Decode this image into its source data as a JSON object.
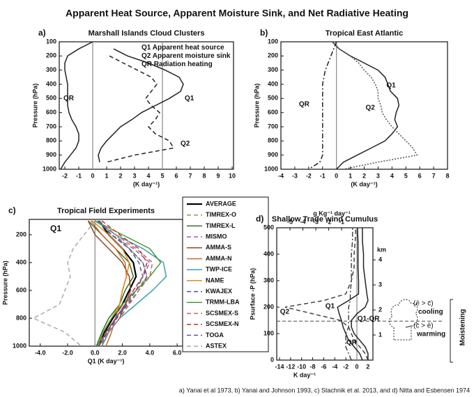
{
  "title": "Apparent Heat Source, Apparent Moisture Sink, and Net Radiative Heating",
  "caption": "a) Yanai et al 1973, b) Yanai and Johnson 1993, c) Stachnik et al. 2013, and d) Nitta and Esbensen 1974",
  "chart_data": [
    {
      "type": "line",
      "panel_label": "a)",
      "title": "Marshall Islands Cloud Clusters",
      "xlabel": "(K day⁻¹)",
      "ylabel": "Pressure (hPa)",
      "y": [
        100,
        150,
        200,
        250,
        300,
        350,
        400,
        450,
        500,
        550,
        600,
        650,
        700,
        750,
        800,
        850,
        900,
        950,
        1000
      ],
      "xlim": [
        -2.4,
        10.1
      ],
      "xticks": [
        -2,
        -1,
        0,
        1,
        2,
        3,
        4,
        5,
        6,
        7,
        8,
        9,
        10
      ],
      "ylim": [
        100,
        1000
      ],
      "yticks": [
        100,
        200,
        300,
        400,
        500,
        600,
        700,
        800,
        900,
        1000
      ],
      "y_inverted": true,
      "reference_lines": [
        0,
        5
      ],
      "legend": "inside-top-right",
      "series": [
        {
          "name": "Q1",
          "description": "Apparent heat source",
          "color": "#222222",
          "dash": "solid",
          "values": [
            null,
            1.5,
            2.5,
            4,
            5.2,
            6.2,
            6.5,
            6.3,
            5.5,
            4.5,
            3.5,
            2.8,
            2,
            1.5,
            1,
            0.6,
            0.4,
            0.5,
            null
          ]
        },
        {
          "name": "Q2",
          "description": "Apparent moisture sink",
          "color": "#222222",
          "dash": "dashed",
          "values": [
            null,
            null,
            1.2,
            2.2,
            3.2,
            4.2,
            4.6,
            4.2,
            3.8,
            4.2,
            4.8,
            4.5,
            4,
            4.5,
            5.5,
            5.8,
            3,
            1,
            null
          ]
        },
        {
          "name": "QR",
          "description": "Radiation heating",
          "color": "#222222",
          "dash": "solid",
          "values": [
            0,
            -1,
            -1.8,
            -2,
            -2,
            -1.9,
            -1.8,
            -1.8,
            -1.8,
            -1.8,
            -1.7,
            -1.5,
            -1.2,
            -1,
            -1,
            -1.2,
            -1.6,
            -2,
            -2.3
          ]
        }
      ]
    },
    {
      "type": "line",
      "panel_label": "b)",
      "title": "Tropical East Atlantic",
      "xlabel": "(K day⁻¹)",
      "ylabel": "Pressure (hPa)",
      "y": [
        100,
        150,
        200,
        250,
        300,
        350,
        400,
        450,
        500,
        550,
        600,
        650,
        700,
        750,
        800,
        850,
        900,
        950,
        1000
      ],
      "xlim": [
        -4,
        8
      ],
      "xticks": [
        -4,
        -3,
        -2,
        -1,
        0,
        1,
        2,
        3,
        4,
        5,
        6,
        7,
        8
      ],
      "ylim": [
        100,
        1000
      ],
      "yticks": [
        100,
        200,
        300,
        400,
        500,
        600,
        700,
        800,
        900,
        1000
      ],
      "y_inverted": true,
      "reference_lines": [
        0
      ],
      "series": [
        {
          "name": "Q1",
          "color": "#222222",
          "dash": "solid",
          "values": [
            -0.3,
            0.2,
            1,
            2,
            3,
            3.5,
            3.7,
            3.9,
            4.4,
            4.5,
            4.3,
            4.2,
            4.4,
            4,
            3.5,
            2.5,
            1.5,
            0.5,
            0
          ]
        },
        {
          "name": "Q2",
          "color": "#555555",
          "dash": "dotted",
          "values": [
            -0.3,
            0.2,
            1,
            1.6,
            2,
            2.5,
            2.8,
            3,
            3,
            3.2,
            3.3,
            3.6,
            4,
            4.5,
            5,
            5.5,
            5.8,
            3,
            0.5
          ]
        },
        {
          "name": "QR",
          "color": "#222222",
          "dash": "dashdot",
          "values": [
            0,
            -0.2,
            -0.4,
            -0.6,
            -0.8,
            -0.9,
            -1,
            -1,
            -1,
            -1,
            -1,
            -1,
            -1,
            -1,
            -1,
            -1,
            -1,
            -1.2,
            -2
          ]
        }
      ]
    },
    {
      "type": "line",
      "panel_label": "c)",
      "title": "Tropical Field Experiments",
      "xlabel": "Q1 (K day⁻¹)",
      "ylabel": "Pressure (hPa)",
      "annotations": [
        "Q1"
      ],
      "y": [
        100,
        200,
        300,
        400,
        500,
        600,
        700,
        800,
        900,
        1000
      ],
      "xlim": [
        -4.8,
        6.4
      ],
      "xticks": [
        {
          "value": -4,
          "label": "-4.0"
        },
        {
          "value": -2,
          "label": "-2.0"
        },
        {
          "value": 0,
          "label": "0.0"
        },
        {
          "value": 2,
          "label": "2.0"
        },
        {
          "value": 4,
          "label": "4.0"
        },
        {
          "value": 6,
          "label": "6.0"
        }
      ],
      "ylim": [
        90,
        1000
      ],
      "yticks": [
        200,
        400,
        600,
        800,
        1000
      ],
      "y_inverted": true,
      "reference_lines": [
        0
      ],
      "legend": "right",
      "series": [
        {
          "name": "AVERAGE",
          "color": "#000000",
          "dash": "solid",
          "width": 2.2,
          "values": [
            0.3,
            1.0,
            2.0,
            2.8,
            3.0,
            2.5,
            2.0,
            1.3,
            0.7,
            0.2
          ]
        },
        {
          "name": "TIMREX-O",
          "color": "#7aa05a",
          "dash": "dashed",
          "values": [
            0.0,
            1.5,
            2.5,
            3.5,
            3.8,
            3.0,
            2.2,
            1.5,
            0.8,
            0.2
          ]
        },
        {
          "name": "TIMREX-L",
          "color": "#3a6b2a",
          "dash": "solid",
          "values": [
            -0.5,
            0.5,
            1.5,
            2.5,
            2.8,
            2.2,
            1.8,
            1.0,
            0.5,
            0.1
          ]
        },
        {
          "name": "MISMO",
          "color": "#a05ab0",
          "dash": "dashed",
          "values": [
            0.2,
            1.2,
            2.8,
            4.0,
            3.5,
            2.8,
            2.2,
            1.5,
            0.8,
            0.3
          ]
        },
        {
          "name": "AMMA-S",
          "color": "#8b4a2b",
          "dash": "solid",
          "values": [
            -0.5,
            0.0,
            1.0,
            2.0,
            2.5,
            2.6,
            2.2,
            1.8,
            1.0,
            0.5
          ]
        },
        {
          "name": "AMMA-N",
          "color": "#c06a30",
          "dash": "solid",
          "values": [
            -0.3,
            0.5,
            1.5,
            2.2,
            2.3,
            2.0,
            1.8,
            1.5,
            1.2,
            0.8
          ]
        },
        {
          "name": "TWP-ICE",
          "color": "#3aa0b0",
          "dash": "solid",
          "values": [
            0.0,
            1.5,
            3.5,
            5.0,
            5.2,
            4.2,
            3.0,
            1.8,
            1.0,
            0.5
          ]
        },
        {
          "name": "NAME",
          "color": "#e08a20",
          "dash": "solid",
          "values": [
            -0.2,
            1.0,
            2.0,
            2.5,
            2.3,
            2.0,
            1.8,
            1.2,
            0.6,
            0.2
          ]
        },
        {
          "name": "KWAJEX",
          "color": "#4a4aa0",
          "dash": "dashed",
          "values": [
            0.2,
            1.2,
            2.5,
            3.5,
            3.8,
            3.2,
            2.4,
            1.6,
            0.9,
            0.3
          ]
        },
        {
          "name": "TRMM-LBA",
          "color": "#4a9a3a",
          "dash": "solid",
          "values": [
            0.0,
            2.0,
            4.0,
            4.8,
            4.0,
            3.0,
            2.0,
            1.2,
            0.6,
            0.2
          ]
        },
        {
          "name": "SCSMEX-S",
          "color": "#d06050",
          "dash": "dashed",
          "values": [
            0.3,
            1.5,
            3.0,
            4.2,
            4.0,
            3.2,
            2.5,
            1.8,
            1.0,
            0.4
          ]
        },
        {
          "name": "SCSMEX-N",
          "color": "#c03030",
          "dash": "dashed",
          "values": [
            0.5,
            1.8,
            3.2,
            3.8,
            3.5,
            2.8,
            2.2,
            1.5,
            0.8,
            0.3
          ]
        },
        {
          "name": "TOGA",
          "color": "#5a5a9a",
          "dash": "dashed",
          "values": [
            0.3,
            1.2,
            2.5,
            3.2,
            3.5,
            3.0,
            2.3,
            1.5,
            0.9,
            0.3
          ]
        },
        {
          "name": "ASTEX",
          "color": "#aaaaaa",
          "dash": "dashed",
          "values": [
            0.0,
            -0.8,
            -1.6,
            -2.0,
            -1.8,
            -2.2,
            -2.6,
            -4.5,
            -2.2,
            -1.0
          ]
        }
      ]
    },
    {
      "type": "line",
      "panel_label": "d)",
      "title": "Shallow Trade wind Cumulus",
      "xlabel": "K day⁻¹",
      "ylabel": "Psurface -P (hPa)",
      "x2label": "g Kg⁻¹  day⁻¹",
      "y2label": "km",
      "annotations": [
        "(ē > c̄)",
        "cooling",
        "(c̄ > ē)",
        "warming",
        "Moistening"
      ],
      "y": [
        0,
        25,
        50,
        75,
        100,
        125,
        150,
        175,
        200,
        225,
        250,
        300,
        350,
        400,
        450,
        500
      ],
      "xlim": [
        -14.5,
        2.9
      ],
      "xticks": [
        -14,
        -12,
        -10,
        -8,
        -6,
        -4,
        -2,
        0,
        2
      ],
      "x2lim": [
        -6.03,
        1.43
      ],
      "x2ticks": [
        -5,
        -4,
        -3,
        -2,
        -1
      ],
      "ylim": [
        0,
        500
      ],
      "yticks": [
        0,
        100,
        200,
        300,
        400,
        500
      ],
      "y2lim": [
        0,
        5.28
      ],
      "y2ticks": [
        1,
        2,
        3,
        4
      ],
      "reference_lines": [
        0
      ],
      "reference_lines_y": [
        147
      ],
      "series": [
        {
          "name": "Q1",
          "color": "#222222",
          "dash": "solid",
          "values": [
            1,
            0.5,
            -0.5,
            -1.5,
            -2,
            -2.5,
            -2.8,
            -3.2,
            -3.5,
            -1.5,
            0.3,
            0.3,
            0.2,
            0.2,
            0.2,
            0.1
          ]
        },
        {
          "name": "Q2",
          "color": "#444444",
          "dash": "dashed",
          "values": [
            2,
            1.5,
            0.5,
            -0.5,
            -1,
            -1.5,
            -3,
            -8,
            -13,
            -6,
            -2,
            -1,
            -0.5,
            -0.5,
            -0.3,
            -0.2
          ]
        },
        {
          "name": "QR",
          "color": "#444444",
          "dash": "dashdot",
          "values": [
            -1,
            -1.5,
            -2,
            -2,
            -2,
            -1.5,
            -1.5,
            -1.5,
            -1.5,
            -1.2,
            -1.2,
            -1,
            -1,
            -1,
            -0.8,
            -0.8
          ]
        },
        {
          "name": "Q1-QR",
          "color": "#222222",
          "dash": "solid",
          "values": [
            2,
            2,
            1.5,
            0.5,
            -0.5,
            -1,
            -1,
            0,
            1.5,
            2,
            1.8,
            1.5,
            1.2,
            1.2,
            1,
            1
          ]
        }
      ]
    }
  ]
}
